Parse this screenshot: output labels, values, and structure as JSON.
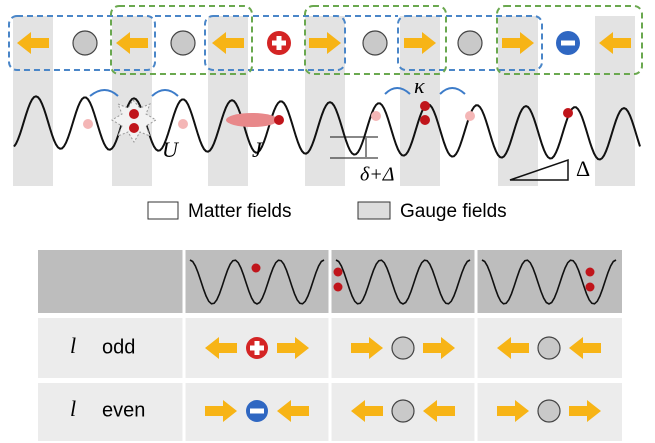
{
  "diagram": {
    "labels": {
      "onsite": "U",
      "hopping": "J",
      "coupling": "κ",
      "offset": "δ+Δ",
      "tilt": "Δ"
    },
    "legend": [
      "Matter fields",
      "Gauge fields"
    ],
    "table": {
      "rows": [
        {
          "index": "l",
          "parity": "odd"
        },
        {
          "index": "l",
          "parity": "even"
        }
      ]
    }
  }
}
